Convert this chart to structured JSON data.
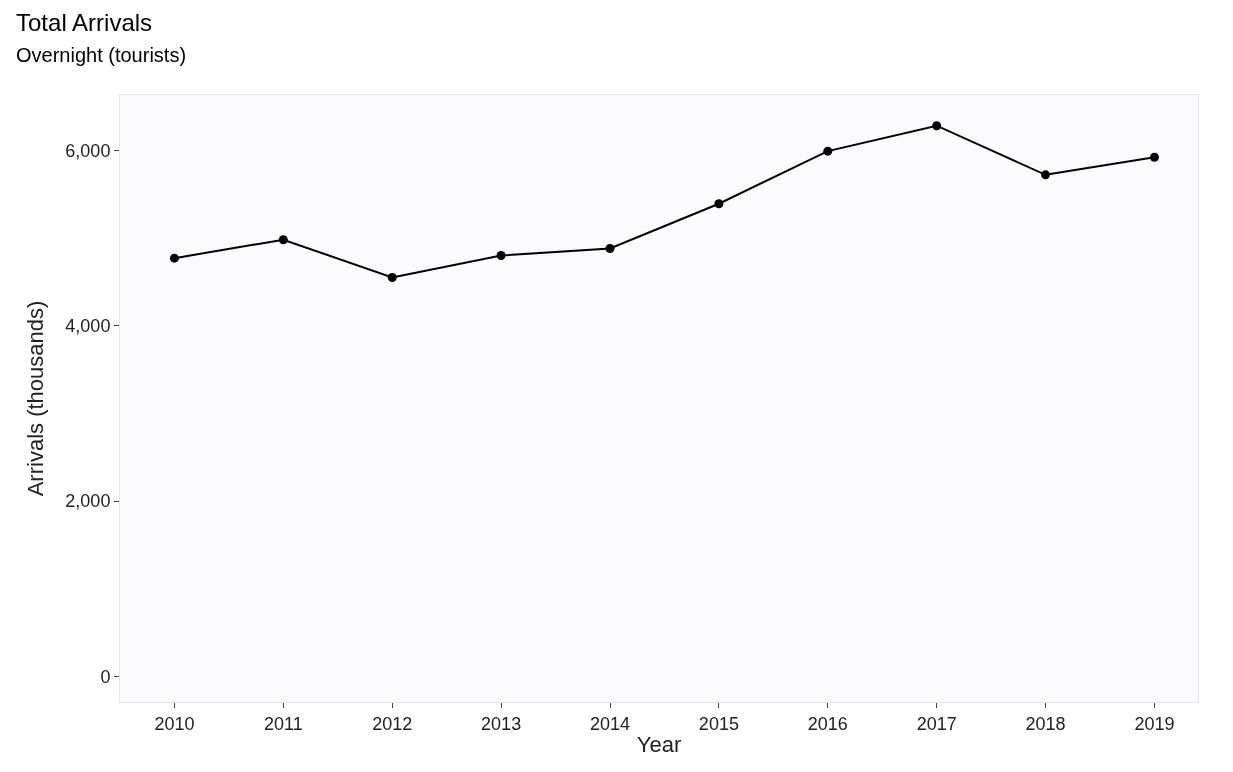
{
  "chart_data": {
    "type": "line",
    "title": "Total Arrivals",
    "subtitle": "Overnight (tourists)",
    "xlabel": "Year",
    "ylabel": "Arrivals (thousands)",
    "x": [
      2010,
      2011,
      2012,
      2013,
      2014,
      2015,
      2016,
      2017,
      2018,
      2019
    ],
    "series": [
      {
        "color": "#000000",
        "values": [
          4770,
          4980,
          4550,
          4800,
          4880,
          5390,
          5990,
          6280,
          5720,
          5920
        ]
      }
    ],
    "xlim": [
      2009.5,
      2019.4
    ],
    "xticks": [
      2010,
      2011,
      2012,
      2013,
      2014,
      2015,
      2016,
      2017,
      2018,
      2019
    ],
    "ylim": [
      -290,
      6630
    ],
    "yticks": [
      {
        "value": 0,
        "label": "0"
      },
      {
        "value": 2000,
        "label": "2,000"
      },
      {
        "value": 4000,
        "label": "4,000"
      },
      {
        "value": 6000,
        "label": "6,000"
      }
    ],
    "marker": "circle",
    "line_style": "solid"
  }
}
